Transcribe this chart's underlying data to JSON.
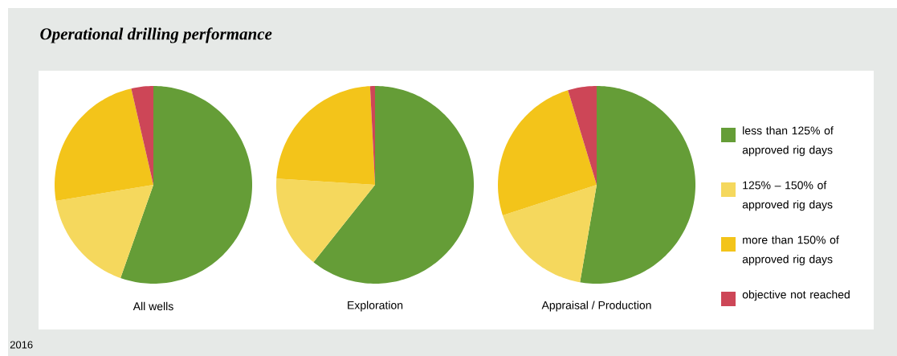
{
  "chart_data": {
    "type": "pie",
    "title": "Operational drilling performance",
    "categories": [
      "less than 125% of approved rig days",
      "125% – 150% of approved rig days",
      "more than 150% of approved rig days",
      "objective not reached"
    ],
    "colors": [
      "#659d37",
      "#f5d85d",
      "#f3c41a",
      "#cd4657"
    ],
    "series": [
      {
        "name": "All wells",
        "values": [
          55.4,
          17,
          24,
          3.6
        ]
      },
      {
        "name": "Exploration",
        "values": [
          60.7,
          15.3,
          23.2,
          0.8
        ]
      },
      {
        "name": "Appraisal / Production",
        "values": [
          52.7,
          17.3,
          25.3,
          4.7
        ]
      }
    ],
    "legend": "right",
    "annotations": [
      "2016"
    ]
  }
}
